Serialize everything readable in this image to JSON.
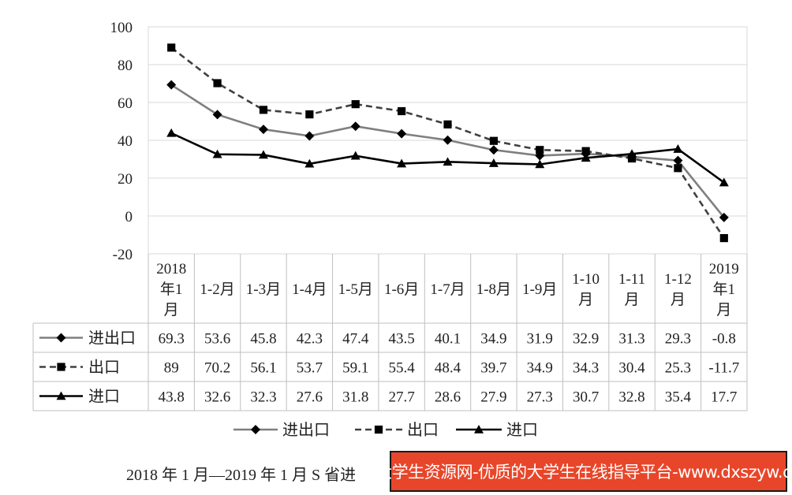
{
  "chart_data": {
    "type": "line",
    "categories": [
      [
        "2018",
        "年1",
        "月"
      ],
      [
        "1-2月"
      ],
      [
        "1-3月"
      ],
      [
        "1-4月"
      ],
      [
        "1-5月"
      ],
      [
        "1-6月"
      ],
      [
        "1-7月"
      ],
      [
        "1-8月"
      ],
      [
        "1-9月"
      ],
      [
        "1-10",
        "月"
      ],
      [
        "1-11",
        "月"
      ],
      [
        "1-12",
        "月"
      ],
      [
        "2019",
        "年1",
        "月"
      ]
    ],
    "series": [
      {
        "name": "进出口",
        "color": "#7f7f7f",
        "dash": "solid",
        "marker": "diamond",
        "values": [
          69.3,
          53.6,
          45.8,
          42.3,
          47.4,
          43.5,
          40.1,
          34.9,
          31.9,
          32.9,
          31.3,
          29.3,
          -0.8
        ],
        "labels": [
          "69.3",
          "53.6",
          "45.8",
          "42.3",
          "47.4",
          "43.5",
          "40.1",
          "34.9",
          "31.9",
          "32.9",
          "31.3",
          "29.3",
          "-0.8"
        ]
      },
      {
        "name": "出口",
        "color": "#404040",
        "dash": "dashed",
        "marker": "square",
        "values": [
          89,
          70.2,
          56.1,
          53.7,
          59.1,
          55.4,
          48.4,
          39.7,
          34.9,
          34.3,
          30.4,
          25.3,
          -11.7
        ],
        "labels": [
          "89",
          "70.2",
          "56.1",
          "53.7",
          "59.1",
          "55.4",
          "48.4",
          "39.7",
          "34.9",
          "34.3",
          "30.4",
          "25.3",
          "-11.7"
        ]
      },
      {
        "name": "进口",
        "color": "#000000",
        "dash": "solid",
        "marker": "triangle",
        "values": [
          43.8,
          32.6,
          32.3,
          27.6,
          31.8,
          27.7,
          28.6,
          27.9,
          27.3,
          30.7,
          32.8,
          35.4,
          17.7
        ],
        "labels": [
          "43.8",
          "32.6",
          "32.3",
          "27.6",
          "31.8",
          "27.7",
          "28.6",
          "27.9",
          "27.3",
          "30.7",
          "32.8",
          "35.4",
          "17.7"
        ]
      }
    ],
    "y_ticks": [
      "100",
      "80",
      "60",
      "40",
      "20",
      "0",
      "-20"
    ],
    "ylim": [
      -20,
      100
    ],
    "grid": true,
    "data_table": true,
    "legend": "bottom"
  },
  "caption": "2018 年 1 月—2019 年 1 月 S 省进",
  "watermark": "大学生资源网-优质的大学生在线指导平台-www.dxszyw.cn"
}
